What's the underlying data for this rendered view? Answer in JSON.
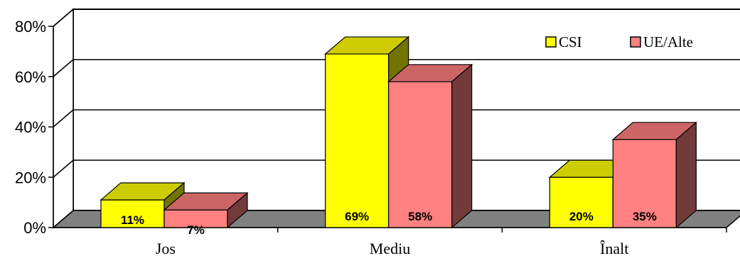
{
  "chart_data": {
    "type": "bar",
    "style": "3d-clustered",
    "categories": [
      "Jos",
      "Mediu",
      "Înalt"
    ],
    "series": [
      {
        "name": "CSI",
        "values": [
          11,
          69,
          20
        ],
        "labels": [
          "11%",
          "69%",
          "20%"
        ],
        "color": "#ffff00"
      },
      {
        "name": "UE/Alte",
        "values": [
          7,
          58,
          35
        ],
        "labels": [
          "7%",
          "58%",
          "35%"
        ],
        "color": "#ff8080"
      }
    ],
    "y_ticks": [
      "0%",
      "20%",
      "40%",
      "60%",
      "80%"
    ],
    "ylim": [
      0,
      80
    ],
    "grid": true,
    "legend_position": "top-right",
    "floor_color": "#808080"
  }
}
